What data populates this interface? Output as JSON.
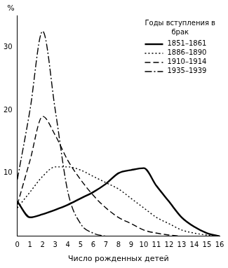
{
  "chart_data": {
    "type": "line",
    "ylabel": "%",
    "xlabel": "Число рожденных детей",
    "legend_title": "Годы вступления в брак",
    "legend": "upper right",
    "grid": false,
    "x": [
      0,
      1,
      2,
      3,
      4,
      5,
      6,
      7,
      8,
      9,
      10,
      11,
      12,
      13,
      14,
      15,
      16
    ],
    "xlim": [
      0,
      16
    ],
    "xticks": [
      0,
      1,
      2,
      3,
      4,
      5,
      6,
      7,
      8,
      9,
      10,
      11,
      12,
      13,
      14,
      15,
      16
    ],
    "ylim": [
      0,
      35
    ],
    "yticks": [
      10,
      20,
      30
    ],
    "series": [
      {
        "name": "1851–1861",
        "color": "#000000",
        "line_style": "solid",
        "values": [
          5.5,
          3,
          3.5,
          4.2,
          5,
          6,
          7,
          8.3,
          10,
          10.5,
          10.8,
          8,
          5.5,
          3,
          1.5,
          0.5,
          0
        ]
      },
      {
        "name": "1886–1890",
        "color": "#000000",
        "line_style": "dotted",
        "values": [
          4.5,
          7,
          9.5,
          11,
          11,
          10.5,
          9.5,
          8.5,
          7.5,
          6,
          4.5,
          3,
          2,
          1,
          0.5,
          0.2,
          0
        ]
      },
      {
        "name": "1910–1914",
        "color": "#000000",
        "line_style": "dashed",
        "values": [
          5,
          12,
          19,
          16,
          12,
          9,
          6.5,
          4.5,
          3,
          2,
          1,
          0.5,
          0.2,
          0,
          null,
          null,
          null
        ]
      },
      {
        "name": "1935–1939",
        "color": "#000000",
        "line_style": "dashdot",
        "values": [
          9,
          20,
          32.5,
          20,
          7,
          2,
          0.5,
          0,
          null,
          null,
          null,
          null,
          null,
          null,
          null,
          null,
          null
        ]
      }
    ]
  }
}
